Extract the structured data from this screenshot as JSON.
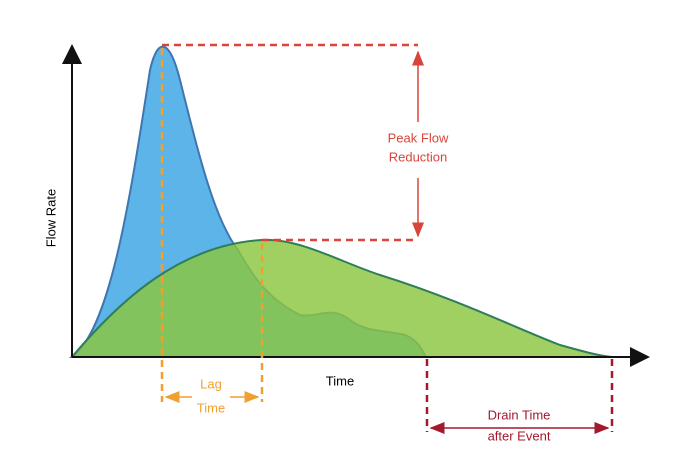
{
  "axes": {
    "y_label": "Flow Rate",
    "x_label": "Time"
  },
  "annotations": {
    "peak_flow_reduction": [
      "Peak Flow",
      "Reduction"
    ],
    "lag_time": [
      "Lag",
      "Time"
    ],
    "drain_time": [
      "Drain Time",
      "after Event"
    ]
  }
}
